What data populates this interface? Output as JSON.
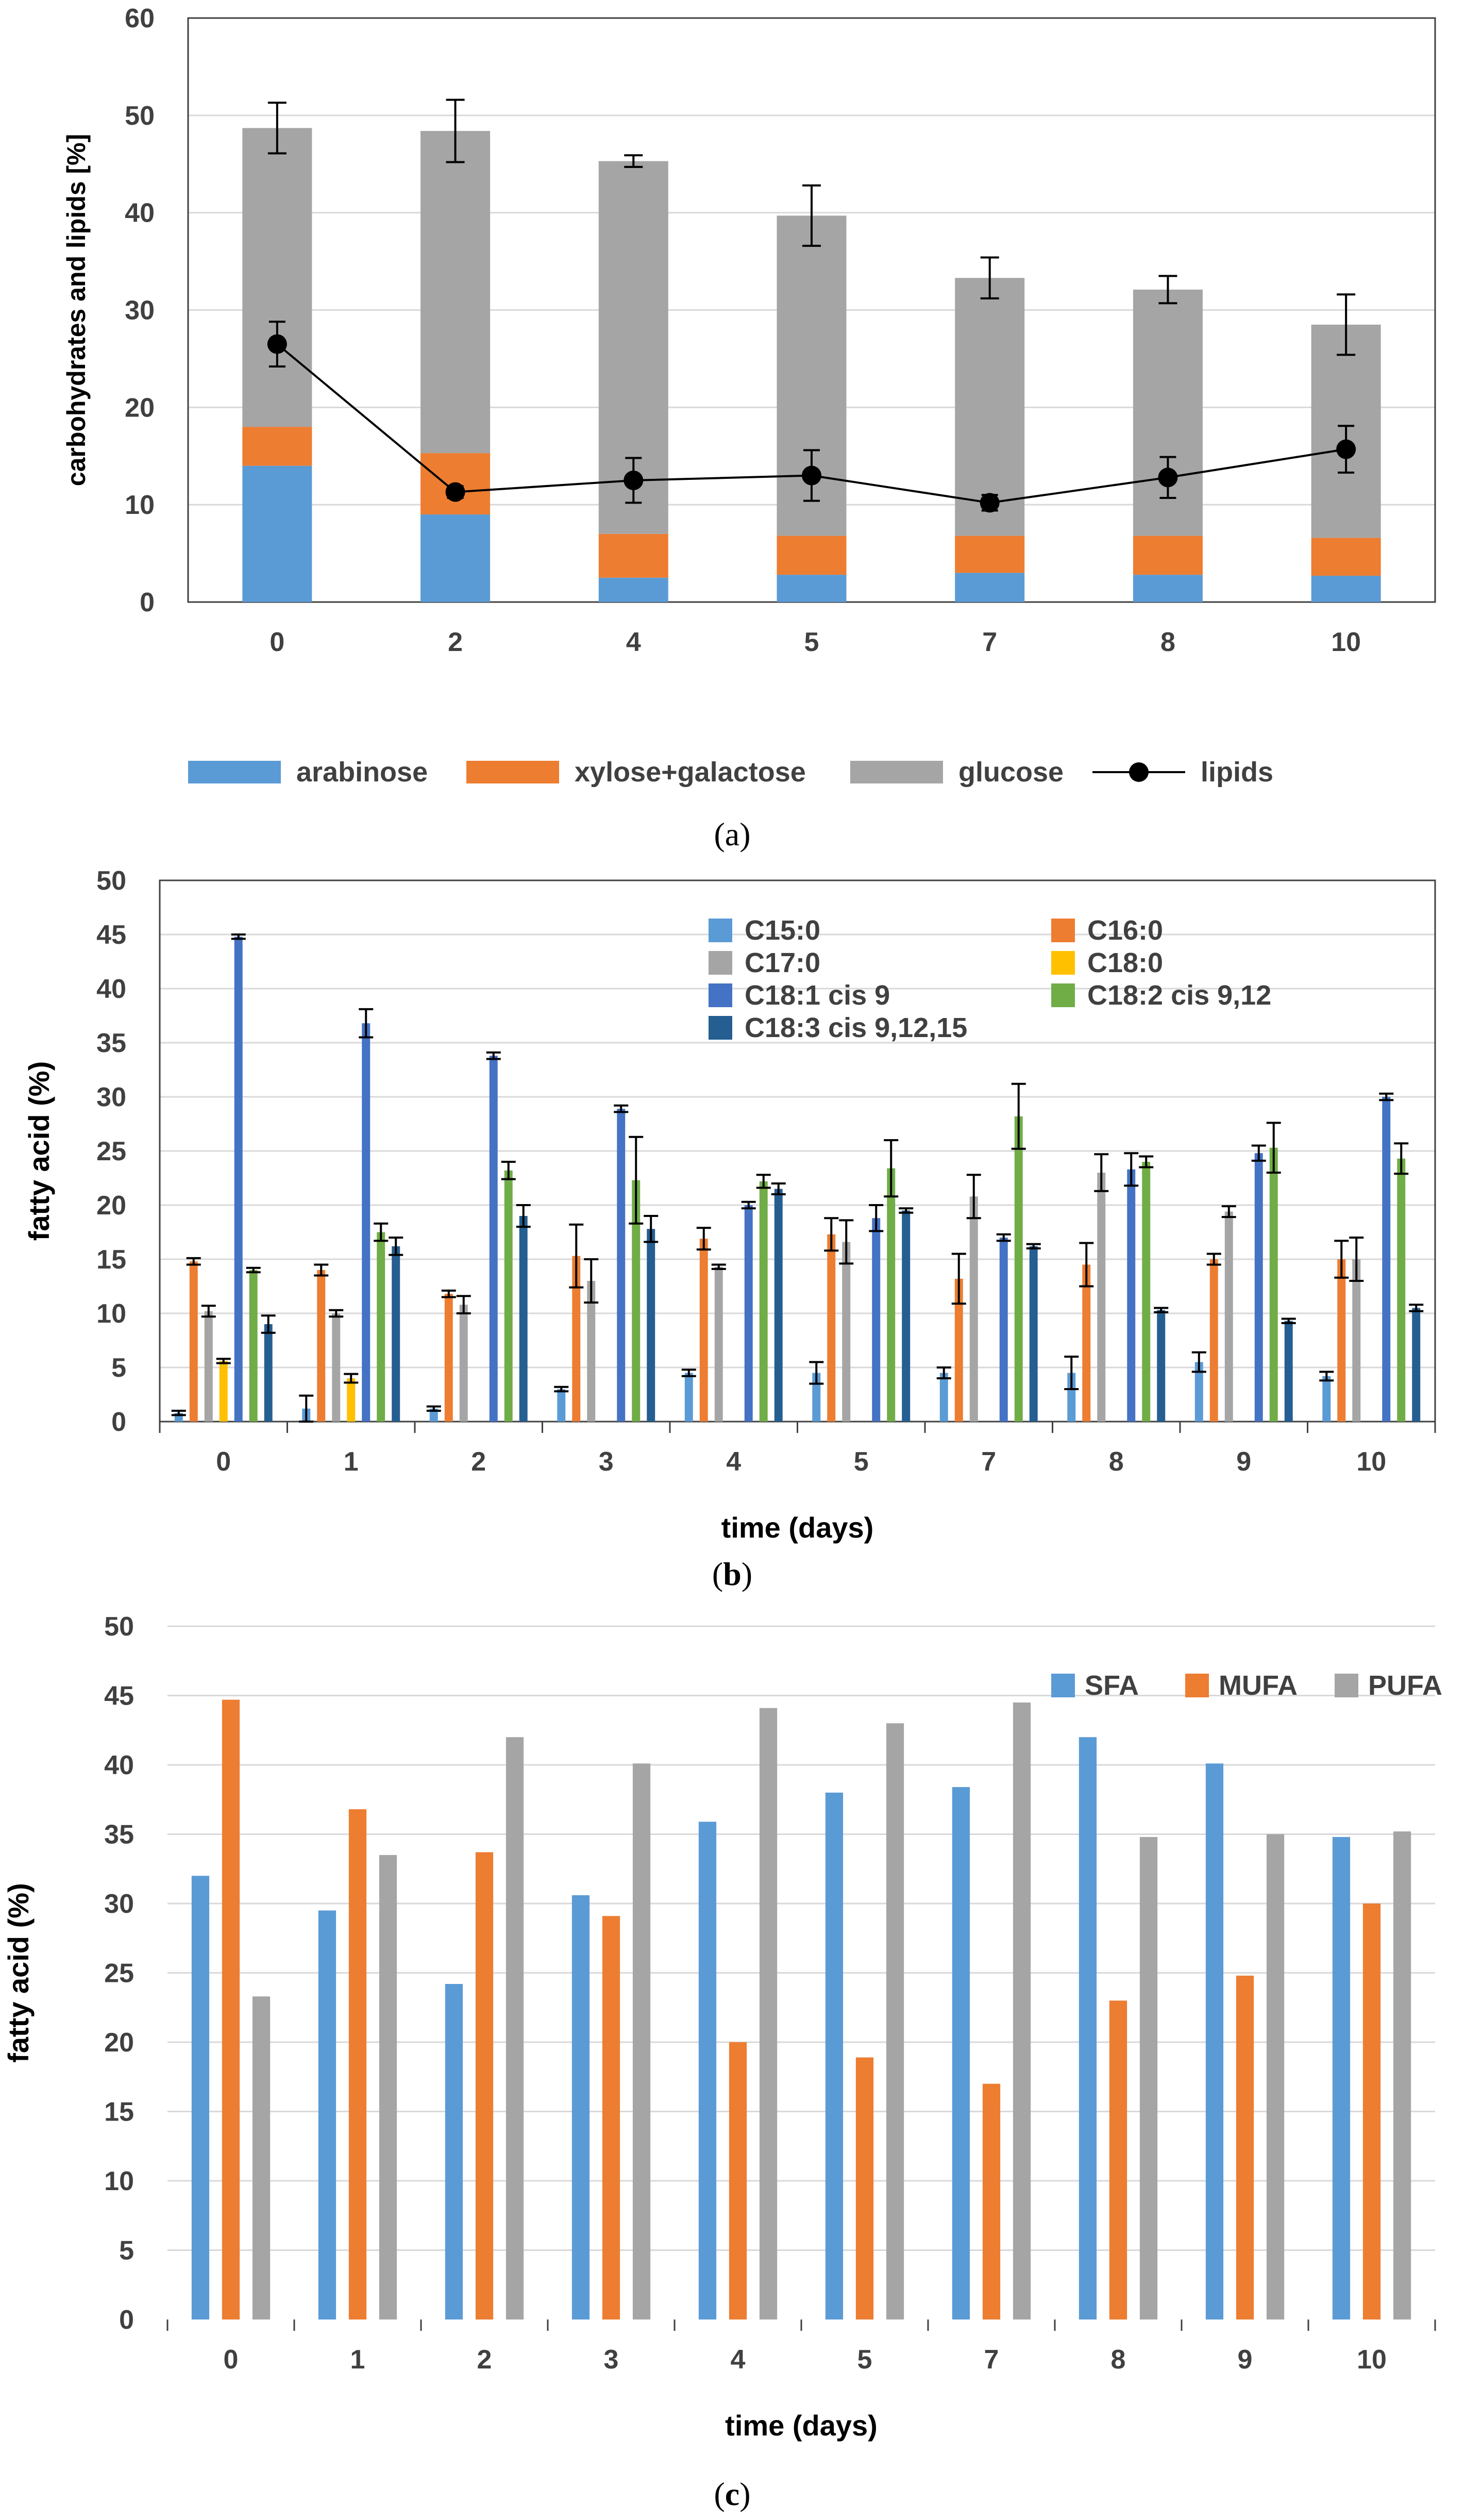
{
  "chart_data": [
    {
      "id": "a",
      "type": "bar",
      "caption": "a",
      "stacked": true,
      "ylabel": "carbohydrates and lipids [%]",
      "xlabel": "",
      "ylim": [
        0,
        60
      ],
      "yticks": [
        0,
        10,
        20,
        30,
        40,
        50,
        60
      ],
      "categories": [
        "0",
        "2",
        "4",
        "5",
        "7",
        "8",
        "10"
      ],
      "series": [
        {
          "name": "arabinose",
          "color": "#5b9bd5",
          "values": [
            14,
            9,
            2.5,
            2.8,
            3,
            2.8,
            2.7
          ]
        },
        {
          "name": "xylose+galactose",
          "color": "#ed7d31",
          "values": [
            4,
            6.3,
            4.5,
            4,
            3.8,
            4,
            3.9
          ]
        },
        {
          "name": "glucose",
          "color": "#a5a5a5",
          "values": [
            30.7,
            33.1,
            38.3,
            32.9,
            26.5,
            25.3,
            21.9
          ]
        }
      ],
      "total_error": [
        2.6,
        3.2,
        0.6,
        3.1,
        2.1,
        1.4,
        3.1
      ],
      "line_series": {
        "name": "lipids",
        "color": "#000000",
        "values": [
          26.5,
          11.3,
          12.5,
          13,
          10.2,
          12.8,
          15.7
        ],
        "error": [
          2.3,
          0.6,
          2.3,
          2.6,
          0.8,
          2.1,
          2.4
        ]
      },
      "legend": "bottom"
    },
    {
      "id": "b",
      "type": "bar",
      "caption": "b",
      "ylabel": "fatty acid (%)",
      "xlabel": "time (days)",
      "ylim": [
        0,
        50
      ],
      "yticks": [
        0,
        5,
        10,
        15,
        20,
        25,
        30,
        35,
        40,
        45,
        50
      ],
      "categories": [
        "0",
        "1",
        "2",
        "3",
        "4",
        "5",
        "7",
        "8",
        "9",
        "10"
      ],
      "series": [
        {
          "name": "C15:0",
          "color": "#5b9bd5",
          "values": [
            0.8,
            1.2,
            1.2,
            3,
            4.5,
            4.5,
            4.5,
            4.5,
            5.5,
            4.2
          ],
          "error": [
            0.2,
            1.2,
            0.2,
            0.2,
            0.3,
            1,
            0.5,
            1.5,
            0.9,
            0.4
          ]
        },
        {
          "name": "C16:0",
          "color": "#ed7d31",
          "values": [
            14.8,
            14,
            11.8,
            15.3,
            16.9,
            17.3,
            13.2,
            14.5,
            15,
            15
          ],
          "error": [
            0.3,
            0.5,
            0.3,
            2.9,
            1,
            1.5,
            2.3,
            2,
            0.5,
            1.7
          ]
        },
        {
          "name": "C17:0",
          "color": "#a5a5a5",
          "values": [
            10.2,
            10,
            10.8,
            13,
            14.3,
            16.6,
            20.8,
            23,
            19.4,
            15
          ],
          "error": [
            0.5,
            0.3,
            0.8,
            2,
            0.2,
            2,
            2,
            1.7,
            0.5,
            2
          ]
        },
        {
          "name": "C18:0",
          "color": "#ffc000",
          "values": [
            5.6,
            4,
            0,
            0,
            0,
            0,
            0,
            0,
            0,
            0
          ],
          "error": [
            0.2,
            0.4,
            0,
            0,
            0,
            0,
            0,
            0,
            0,
            0
          ]
        },
        {
          "name": "C18:1 cis 9",
          "color": "#4472c4",
          "values": [
            44.8,
            36.8,
            33.8,
            28.9,
            20,
            18.8,
            17,
            23.3,
            24.8,
            30
          ],
          "error": [
            0.2,
            1.3,
            0.3,
            0.3,
            0.3,
            1.2,
            0.3,
            1.5,
            0.7,
            0.3
          ]
        },
        {
          "name": "C18:2 cis 9,12",
          "color": "#70ad47",
          "values": [
            14,
            17.5,
            23.2,
            22.3,
            22.2,
            23.4,
            28.2,
            24,
            25.3,
            24.3
          ],
          "error": [
            0.2,
            0.8,
            0.8,
            4,
            0.6,
            2.6,
            3,
            0.5,
            2.3,
            1.4
          ]
        },
        {
          "name": "C18:3 cis 9,12,15",
          "color": "#255e91",
          "values": [
            9,
            16.2,
            19,
            17.8,
            21.5,
            19.5,
            16.2,
            10.3,
            9.3,
            10.5
          ],
          "error": [
            0.8,
            0.8,
            1,
            1.2,
            0.5,
            0.2,
            0.2,
            0.2,
            0.2,
            0.3
          ]
        }
      ],
      "legend": "top-right"
    },
    {
      "id": "c",
      "type": "bar",
      "caption": "c",
      "ylabel": "fatty acid (%)",
      "xlabel": "time (days)",
      "ylim": [
        0,
        50
      ],
      "yticks": [
        0,
        5,
        10,
        15,
        20,
        25,
        30,
        35,
        40,
        45,
        50
      ],
      "categories": [
        "0",
        "1",
        "2",
        "3",
        "4",
        "5",
        "7",
        "8",
        "9",
        "10"
      ],
      "series": [
        {
          "name": "SFA",
          "color": "#5b9bd5",
          "values": [
            32,
            29.5,
            24.2,
            30.6,
            35.9,
            38,
            38.4,
            42,
            40.1,
            34.8
          ]
        },
        {
          "name": "MUFA",
          "color": "#ed7d31",
          "values": [
            44.7,
            36.8,
            33.7,
            29.1,
            20,
            18.9,
            17,
            23,
            24.8,
            30
          ]
        },
        {
          "name": "PUFA",
          "color": "#a5a5a5",
          "values": [
            23.3,
            33.5,
            42,
            40.1,
            44.1,
            43,
            44.5,
            34.8,
            35,
            35.2
          ]
        }
      ],
      "legend": "top-right"
    }
  ]
}
